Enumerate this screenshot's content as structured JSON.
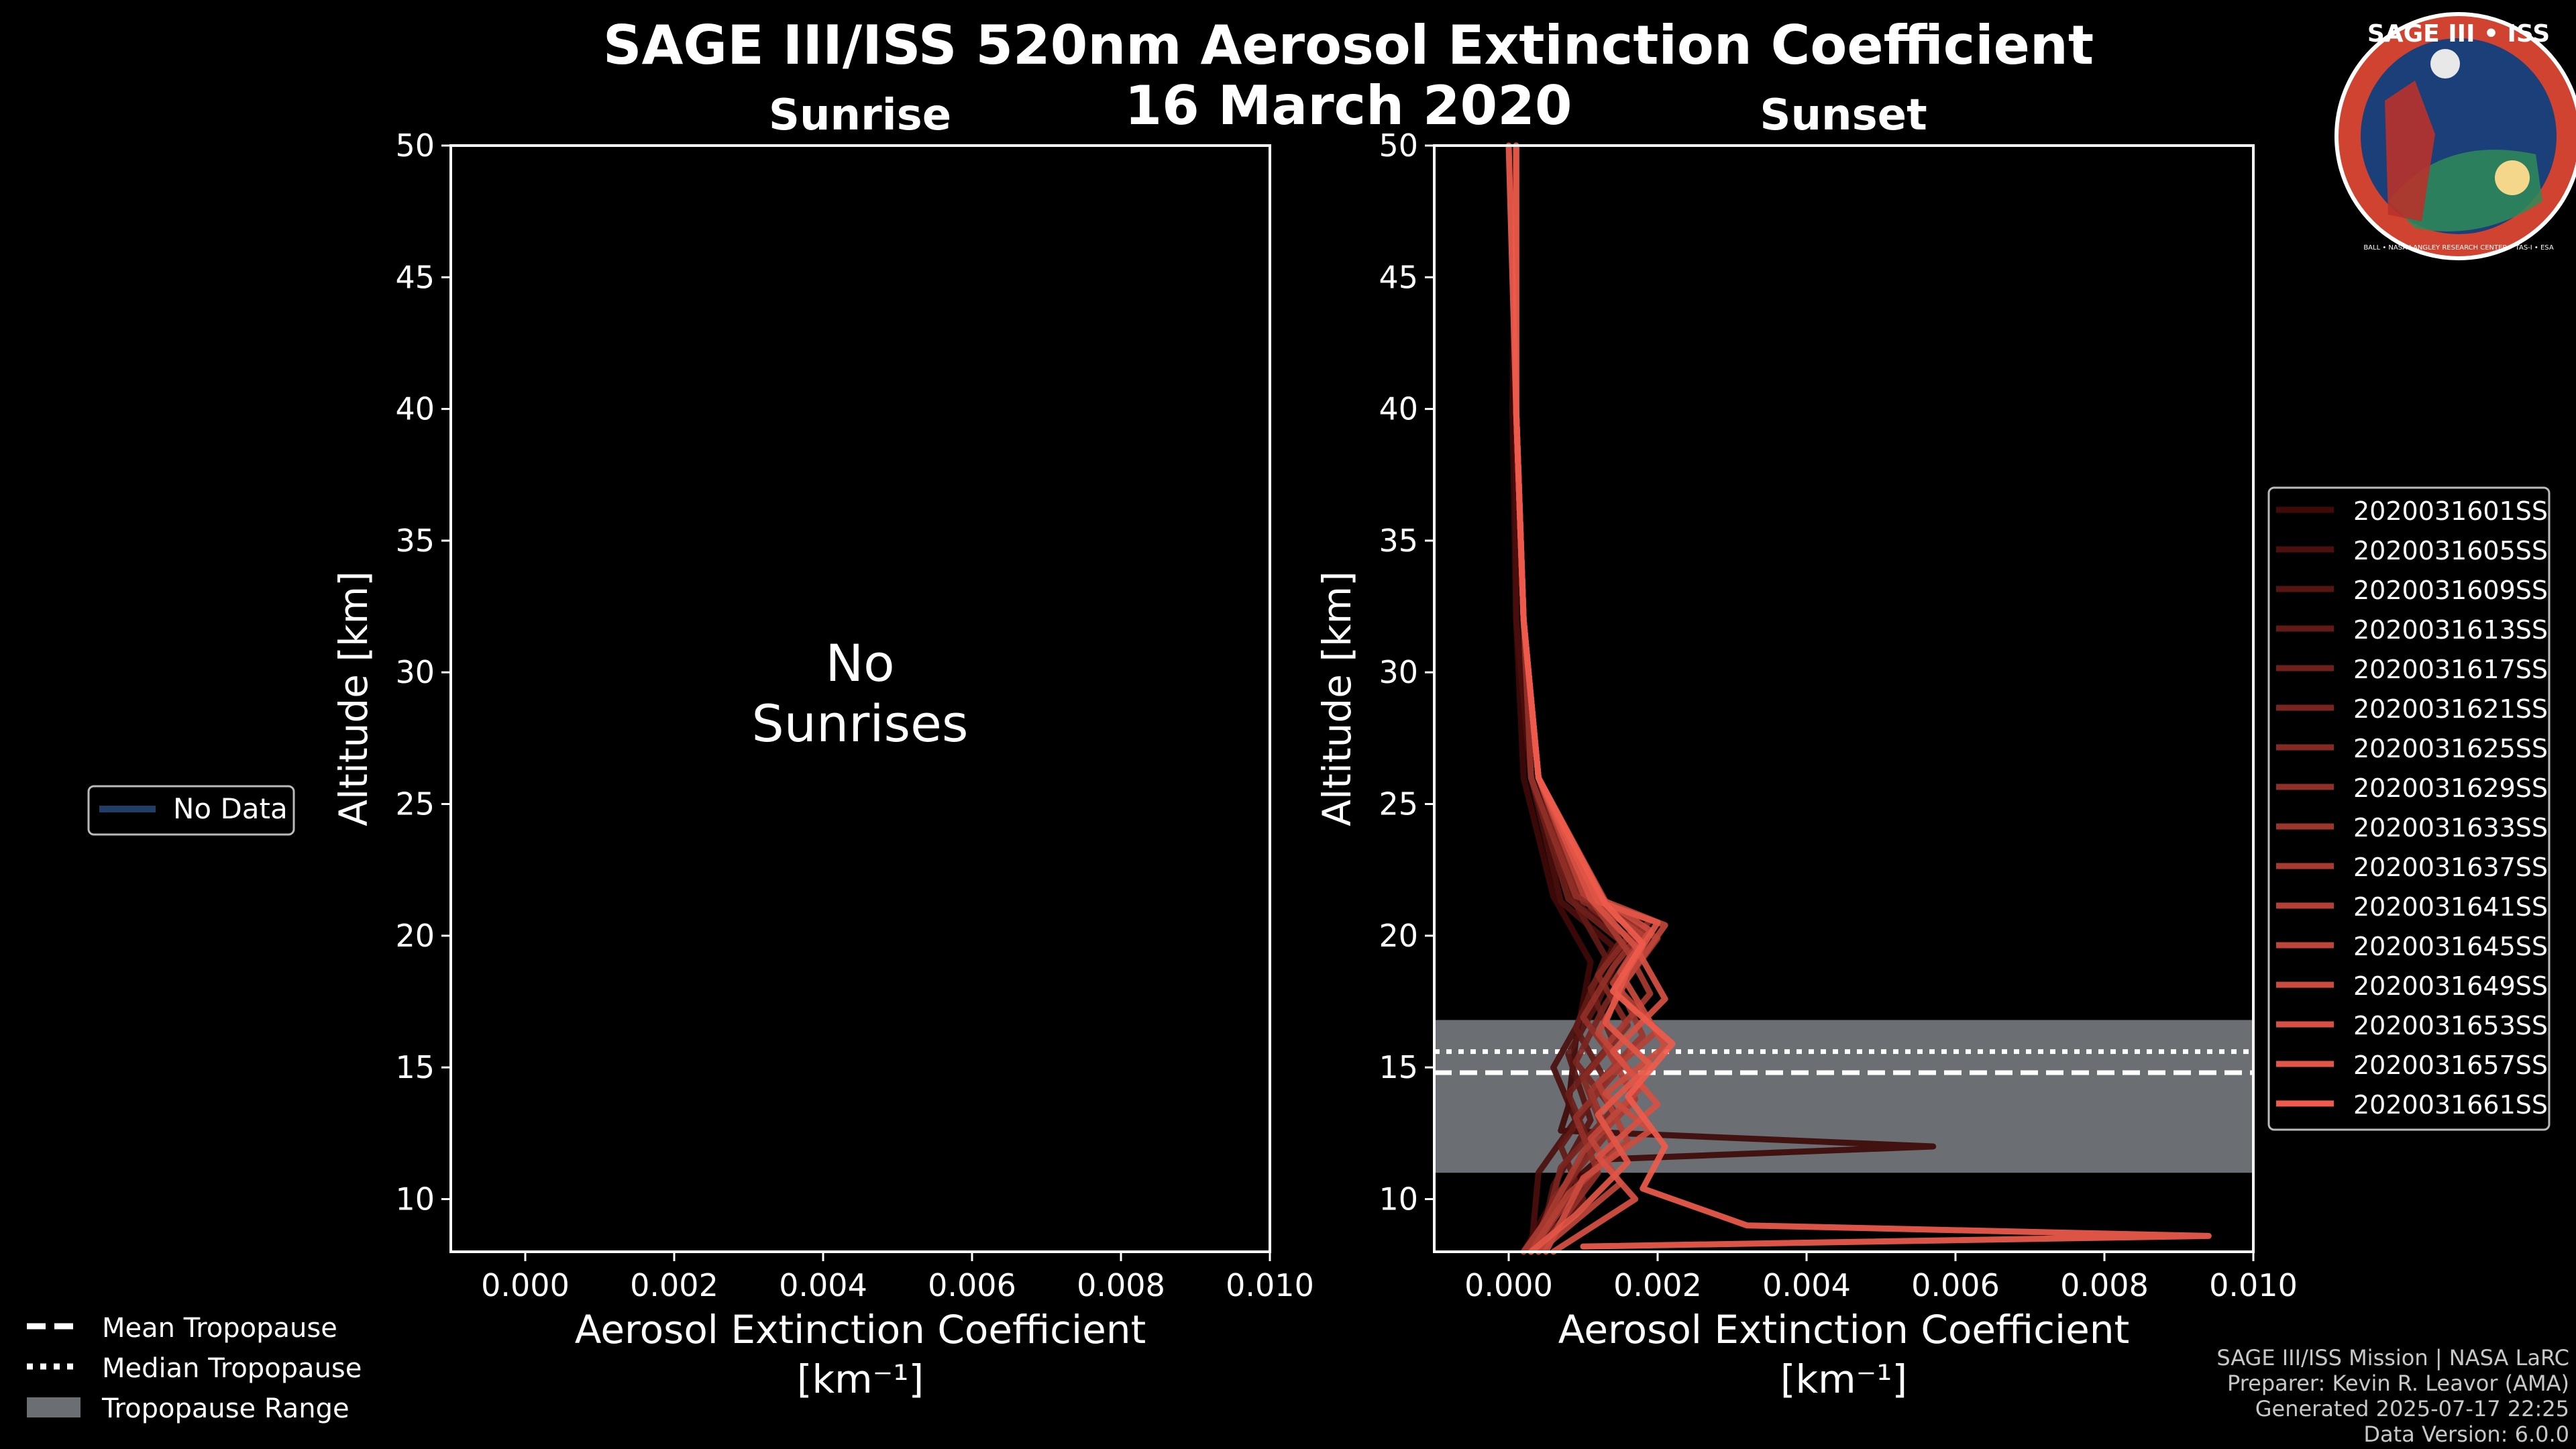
{
  "title": "SAGE III/ISS 520nm Aerosol Extinction Coefficient",
  "date": "16 March 2020",
  "colors": {
    "background": "#000000",
    "axis": "#ffffff",
    "tropo_band": "#6b6e72",
    "no_data_line": "#1f3f66",
    "profile_dark": "#3f0a08",
    "profile_light": "#ee5b4c",
    "logo_bg": "#1b3f78",
    "logo_ring": "#cf4330"
  },
  "logo": {
    "title": "SAGE III • ISS",
    "ring_text": "BALL • NASA LANGLEY RESEARCH CENTER • TAS-I • ESA"
  },
  "left_legend": {
    "no_data": "No Data"
  },
  "bottom_legend": {
    "mean": "Mean Tropopause",
    "median": "Median Tropopause",
    "range": "Tropopause Range"
  },
  "footer": [
    "SAGE III/ISS Mission | NASA LaRC",
    "Preparer: Kevin R. Leavor (AMA)",
    "Generated 2025-07-17 22:25",
    "Data Version: 6.0.0"
  ],
  "chart_data": [
    {
      "type": "line",
      "title": "Sunrise",
      "xlabel": "Aerosol Extinction Coefficient",
      "xunit": "[km⁻¹]",
      "ylabel": "Altitude [km]",
      "xlim": [
        -0.001,
        0.01
      ],
      "ylim": [
        8,
        50
      ],
      "xticks": [
        "0.000",
        "0.002",
        "0.004",
        "0.006",
        "0.008",
        "0.010"
      ],
      "yticks": [
        "10",
        "15",
        "20",
        "25",
        "30",
        "35",
        "40",
        "45",
        "50"
      ],
      "annotation": [
        "No",
        "Sunrises"
      ],
      "series": []
    },
    {
      "type": "line",
      "title": "Sunset",
      "xlabel": "Aerosol Extinction Coefficient",
      "xunit": "[km⁻¹]",
      "ylabel": "Altitude [km]",
      "xlim": [
        -0.001,
        0.01
      ],
      "ylim": [
        8,
        50
      ],
      "xticks": [
        "0.000",
        "0.002",
        "0.004",
        "0.006",
        "0.008",
        "0.010"
      ],
      "yticks": [
        "10",
        "15",
        "20",
        "25",
        "30",
        "35",
        "40",
        "45",
        "50"
      ],
      "tropopause": {
        "mean": 14.8,
        "median": 15.6,
        "range": [
          11.0,
          16.8
        ]
      },
      "series": [
        {
          "name": "2020031601SS",
          "points": [
            [
              0.0001,
              50
            ],
            [
              5e-05,
              40
            ],
            [
              0.0001,
              32
            ],
            [
              0.0002,
              26
            ],
            [
              0.0006,
              21.5
            ],
            [
              0.0011,
              19
            ],
            [
              0.0009,
              16
            ],
            [
              0.0008,
              13.5
            ],
            [
              0.0007,
              12.6
            ],
            [
              0.0057,
              12.0
            ],
            [
              0.0012,
              11.5
            ],
            [
              0.0006,
              10
            ],
            [
              0.0002,
              8
            ]
          ]
        },
        {
          "name": "2020031605SS",
          "points": [
            [
              0.0001,
              50
            ],
            [
              0.0001,
              40
            ],
            [
              0.0001,
              32
            ],
            [
              0.0003,
              26
            ],
            [
              0.0007,
              21.3
            ],
            [
              0.0014,
              19.6
            ],
            [
              0.001,
              17
            ],
            [
              0.0006,
              15
            ],
            [
              0.0009,
              13
            ],
            [
              0.0004,
              11
            ],
            [
              0.0003,
              8
            ]
          ]
        },
        {
          "name": "2020031609SS",
          "points": [
            [
              0.0001,
              50
            ],
            [
              0.0001,
              40
            ],
            [
              0.0002,
              32
            ],
            [
              0.0004,
              26
            ],
            [
              0.001,
              21
            ],
            [
              0.0016,
              20
            ],
            [
              0.0012,
              17.5
            ],
            [
              0.0008,
              15.5
            ],
            [
              0.0011,
              13
            ],
            [
              0.0006,
              10.5
            ],
            [
              0.0004,
              8
            ]
          ]
        },
        {
          "name": "2020031613SS",
          "points": [
            [
              0.0001,
              50
            ],
            [
              0.0001,
              40
            ],
            [
              0.0002,
              32
            ],
            [
              0.0003,
              26
            ],
            [
              0.0009,
              21.2
            ],
            [
              0.0013,
              19.2
            ],
            [
              0.0009,
              16.5
            ],
            [
              0.0013,
              14.5
            ],
            [
              0.0007,
              12
            ],
            [
              0.001,
              10
            ],
            [
              0.0003,
              8
            ]
          ]
        },
        {
          "name": "2020031617SS",
          "points": [
            [
              0.0001,
              50
            ],
            [
              0.0001,
              40
            ],
            [
              0.0002,
              32
            ],
            [
              0.0003,
              26
            ],
            [
              0.0008,
              21.4
            ],
            [
              0.0015,
              19.8
            ],
            [
              0.0011,
              18
            ],
            [
              0.0014,
              16
            ],
            [
              0.0008,
              14
            ],
            [
              0.0011,
              12
            ],
            [
              0.0005,
              9
            ],
            [
              0.0002,
              8
            ]
          ]
        },
        {
          "name": "2020031621SS",
          "points": [
            [
              0.0001,
              50
            ],
            [
              0.0001,
              40
            ],
            [
              0.0002,
              32
            ],
            [
              0.0004,
              26
            ],
            [
              0.0011,
              21.1
            ],
            [
              0.0018,
              19.5
            ],
            [
              0.0013,
              17.4
            ],
            [
              0.0009,
              15.2
            ],
            [
              0.0014,
              13.4
            ],
            [
              0.0007,
              11.2
            ],
            [
              0.0004,
              8
            ]
          ]
        },
        {
          "name": "2020031625SS",
          "points": [
            [
              0.0001,
              50
            ],
            [
              0.0001,
              40
            ],
            [
              0.0002,
              32
            ],
            [
              0.0004,
              26
            ],
            [
              0.001,
              21.3
            ],
            [
              0.0017,
              20.3
            ],
            [
              0.0012,
              18.5
            ],
            [
              0.0016,
              16.6
            ],
            [
              0.001,
              14.6
            ],
            [
              0.0013,
              12.4
            ],
            [
              0.0006,
              10
            ],
            [
              0.0003,
              8
            ]
          ]
        },
        {
          "name": "2020031629SS",
          "points": [
            [
              0.0001,
              50
            ],
            [
              0.0001,
              40
            ],
            [
              0.0002,
              32
            ],
            [
              0.0003,
              26
            ],
            [
              0.0009,
              21.5
            ],
            [
              0.0019,
              20.6
            ],
            [
              0.0014,
              18.8
            ],
            [
              0.001,
              16.9
            ],
            [
              0.0015,
              15.0
            ],
            [
              0.0009,
              13.1
            ],
            [
              0.0012,
              11.0
            ],
            [
              0.0004,
              8
            ]
          ]
        },
        {
          "name": "2020031633SS",
          "points": [
            [
              0.0001,
              50
            ],
            [
              0.0001,
              40
            ],
            [
              0.0002,
              32
            ],
            [
              0.0004,
              26
            ],
            [
              0.0012,
              21.2
            ],
            [
              0.002,
              19.9
            ],
            [
              0.0015,
              18.0
            ],
            [
              0.0018,
              16.2
            ],
            [
              0.0011,
              14.1
            ],
            [
              0.0014,
              12.0
            ],
            [
              0.0007,
              9.6
            ],
            [
              0.0003,
              8
            ]
          ]
        },
        {
          "name": "2020031637SS",
          "points": [
            [
              0.0001,
              50
            ],
            [
              0.0001,
              40
            ],
            [
              0.0002,
              32
            ],
            [
              0.0004,
              26
            ],
            [
              0.0011,
              21.4
            ],
            [
              0.0016,
              19.4
            ],
            [
              0.0019,
              17.8
            ],
            [
              0.0013,
              15.8
            ],
            [
              0.0017,
              13.8
            ],
            [
              0.001,
              11.8
            ],
            [
              0.0005,
              9.2
            ],
            [
              0.0002,
              8
            ]
          ]
        },
        {
          "name": "2020031641SS",
          "points": [
            [
              0.0001,
              50
            ],
            [
              0.0001,
              40
            ],
            [
              0.0002,
              32
            ],
            [
              0.0004,
              26
            ],
            [
              0.001,
              21.6
            ],
            [
              0.0018,
              20.0
            ],
            [
              0.0014,
              18.2
            ],
            [
              0.002,
              16.4
            ],
            [
              0.0012,
              14.4
            ],
            [
              0.0016,
              12.2
            ],
            [
              0.0008,
              10.2
            ],
            [
              0.0003,
              8
            ]
          ]
        },
        {
          "name": "2020031645SS",
          "points": [
            [
              0.0001,
              50
            ],
            [
              0.0001,
              40
            ],
            [
              0.0002,
              32
            ],
            [
              0.0004,
              26
            ],
            [
              0.0013,
              21.3
            ],
            [
              0.0021,
              20.4
            ],
            [
              0.0016,
              18.4
            ],
            [
              0.0012,
              16.3
            ],
            [
              0.0018,
              14.3
            ],
            [
              0.0011,
              12.3
            ],
            [
              0.0015,
              10.6
            ],
            [
              0.0004,
              8
            ]
          ]
        },
        {
          "name": "2020031649SS",
          "points": [
            [
              0.0001,
              50
            ],
            [
              0.0001,
              40
            ],
            [
              0.0002,
              32
            ],
            [
              0.0004,
              26
            ],
            [
              0.0012,
              21.5
            ],
            [
              0.0019,
              20.2
            ],
            [
              0.0015,
              18.6
            ],
            [
              0.0021,
              15.8
            ],
            [
              0.0013,
              14.0
            ],
            [
              0.0019,
              12.6
            ],
            [
              0.001,
              10.8
            ],
            [
              0.0005,
              8
            ]
          ]
        },
        {
          "name": "2020031653SS",
          "points": [
            [
              0.0001,
              50
            ],
            [
              0.0001,
              40
            ],
            [
              0.0002,
              32
            ],
            [
              0.0004,
              26
            ],
            [
              0.0011,
              21.4
            ],
            [
              0.0017,
              19.6
            ],
            [
              0.0021,
              17.6
            ],
            [
              0.0014,
              15.6
            ],
            [
              0.002,
              13.6
            ],
            [
              0.0012,
              11.6
            ],
            [
              0.0017,
              10.0
            ],
            [
              0.0006,
              8
            ]
          ]
        },
        {
          "name": "2020031657SS",
          "points": [
            [
              0.0001,
              50
            ],
            [
              0.0001,
              40
            ],
            [
              0.0002,
              32
            ],
            [
              0.0004,
              26
            ],
            [
              0.0012,
              21.3
            ],
            [
              0.002,
              20.5
            ],
            [
              0.0016,
              18.7
            ],
            [
              0.0013,
              16.7
            ],
            [
              0.0019,
              15.1
            ],
            [
              0.0012,
              13.2
            ],
            [
              0.0016,
              11.4
            ],
            [
              0.0009,
              9.4
            ],
            [
              0.0003,
              8
            ]
          ]
        },
        {
          "name": "2020031661SS",
          "points": [
            [
              0.0,
              50
            ],
            [
              0.0001,
              40
            ],
            [
              0.0002,
              32
            ],
            [
              0.0004,
              26
            ],
            [
              0.0013,
              21.2
            ],
            [
              0.0018,
              19.7
            ],
            [
              0.0014,
              17.9
            ],
            [
              0.0022,
              15.9
            ],
            [
              0.0016,
              13.9
            ],
            [
              0.0021,
              12.0
            ],
            [
              0.0018,
              10.4
            ],
            [
              0.0032,
              9.0
            ],
            [
              0.0094,
              8.6
            ],
            [
              0.001,
              8.2
            ]
          ]
        }
      ]
    }
  ]
}
